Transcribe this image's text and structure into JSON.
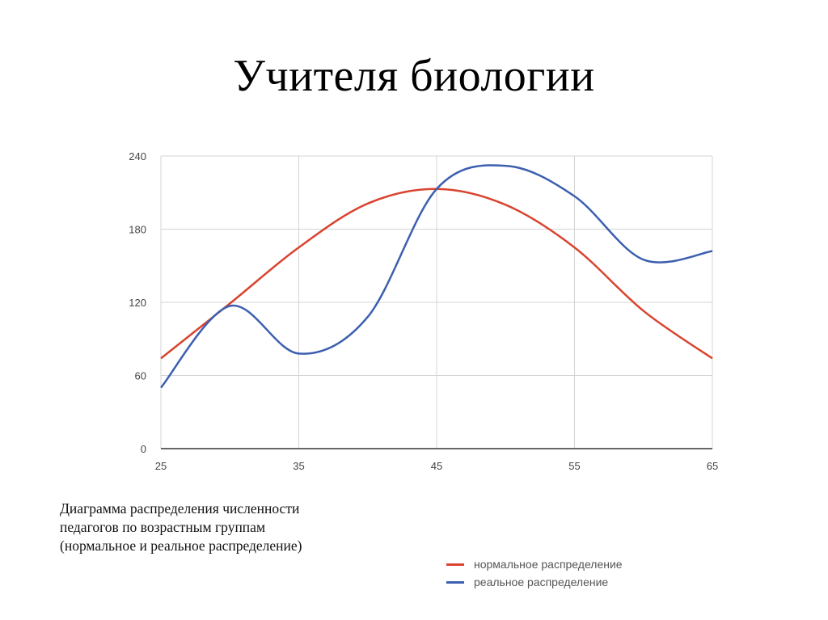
{
  "slide": {
    "title": "Учителя биологии",
    "caption_lines": [
      "Диаграмма распределения численности",
      "педагогов по возрастным группам",
      "(нормальное и реальное распределение)"
    ]
  },
  "legend": [
    {
      "label": "нормальное распределение",
      "color": "#d9432f"
    },
    {
      "label": "реальное распределение",
      "color": "#3c5fb0"
    }
  ],
  "chart_data": {
    "type": "line",
    "title": "",
    "xlabel": "",
    "ylabel": "",
    "x": [
      25,
      30,
      35,
      40,
      45,
      50,
      55,
      60,
      65
    ],
    "x_ticks": [
      "25",
      "35",
      "45",
      "55",
      "65"
    ],
    "y_ticks": [
      "0",
      "60",
      "120",
      "180",
      "240"
    ],
    "xlim": [
      25,
      65
    ],
    "ylim": [
      0,
      240
    ],
    "grid": true,
    "smooth": true,
    "legend_position": "bottom-right",
    "series": [
      {
        "name": "нормальное распределение",
        "color": "#d9432f",
        "values": [
          74,
          119,
          165,
          201,
          213,
          200,
          165,
          113,
          74
        ]
      },
      {
        "name": "реальное распределение",
        "color": "#3c5fb0",
        "values": [
          50,
          117,
          78,
          108,
          213,
          232,
          207,
          155,
          162
        ]
      }
    ]
  }
}
